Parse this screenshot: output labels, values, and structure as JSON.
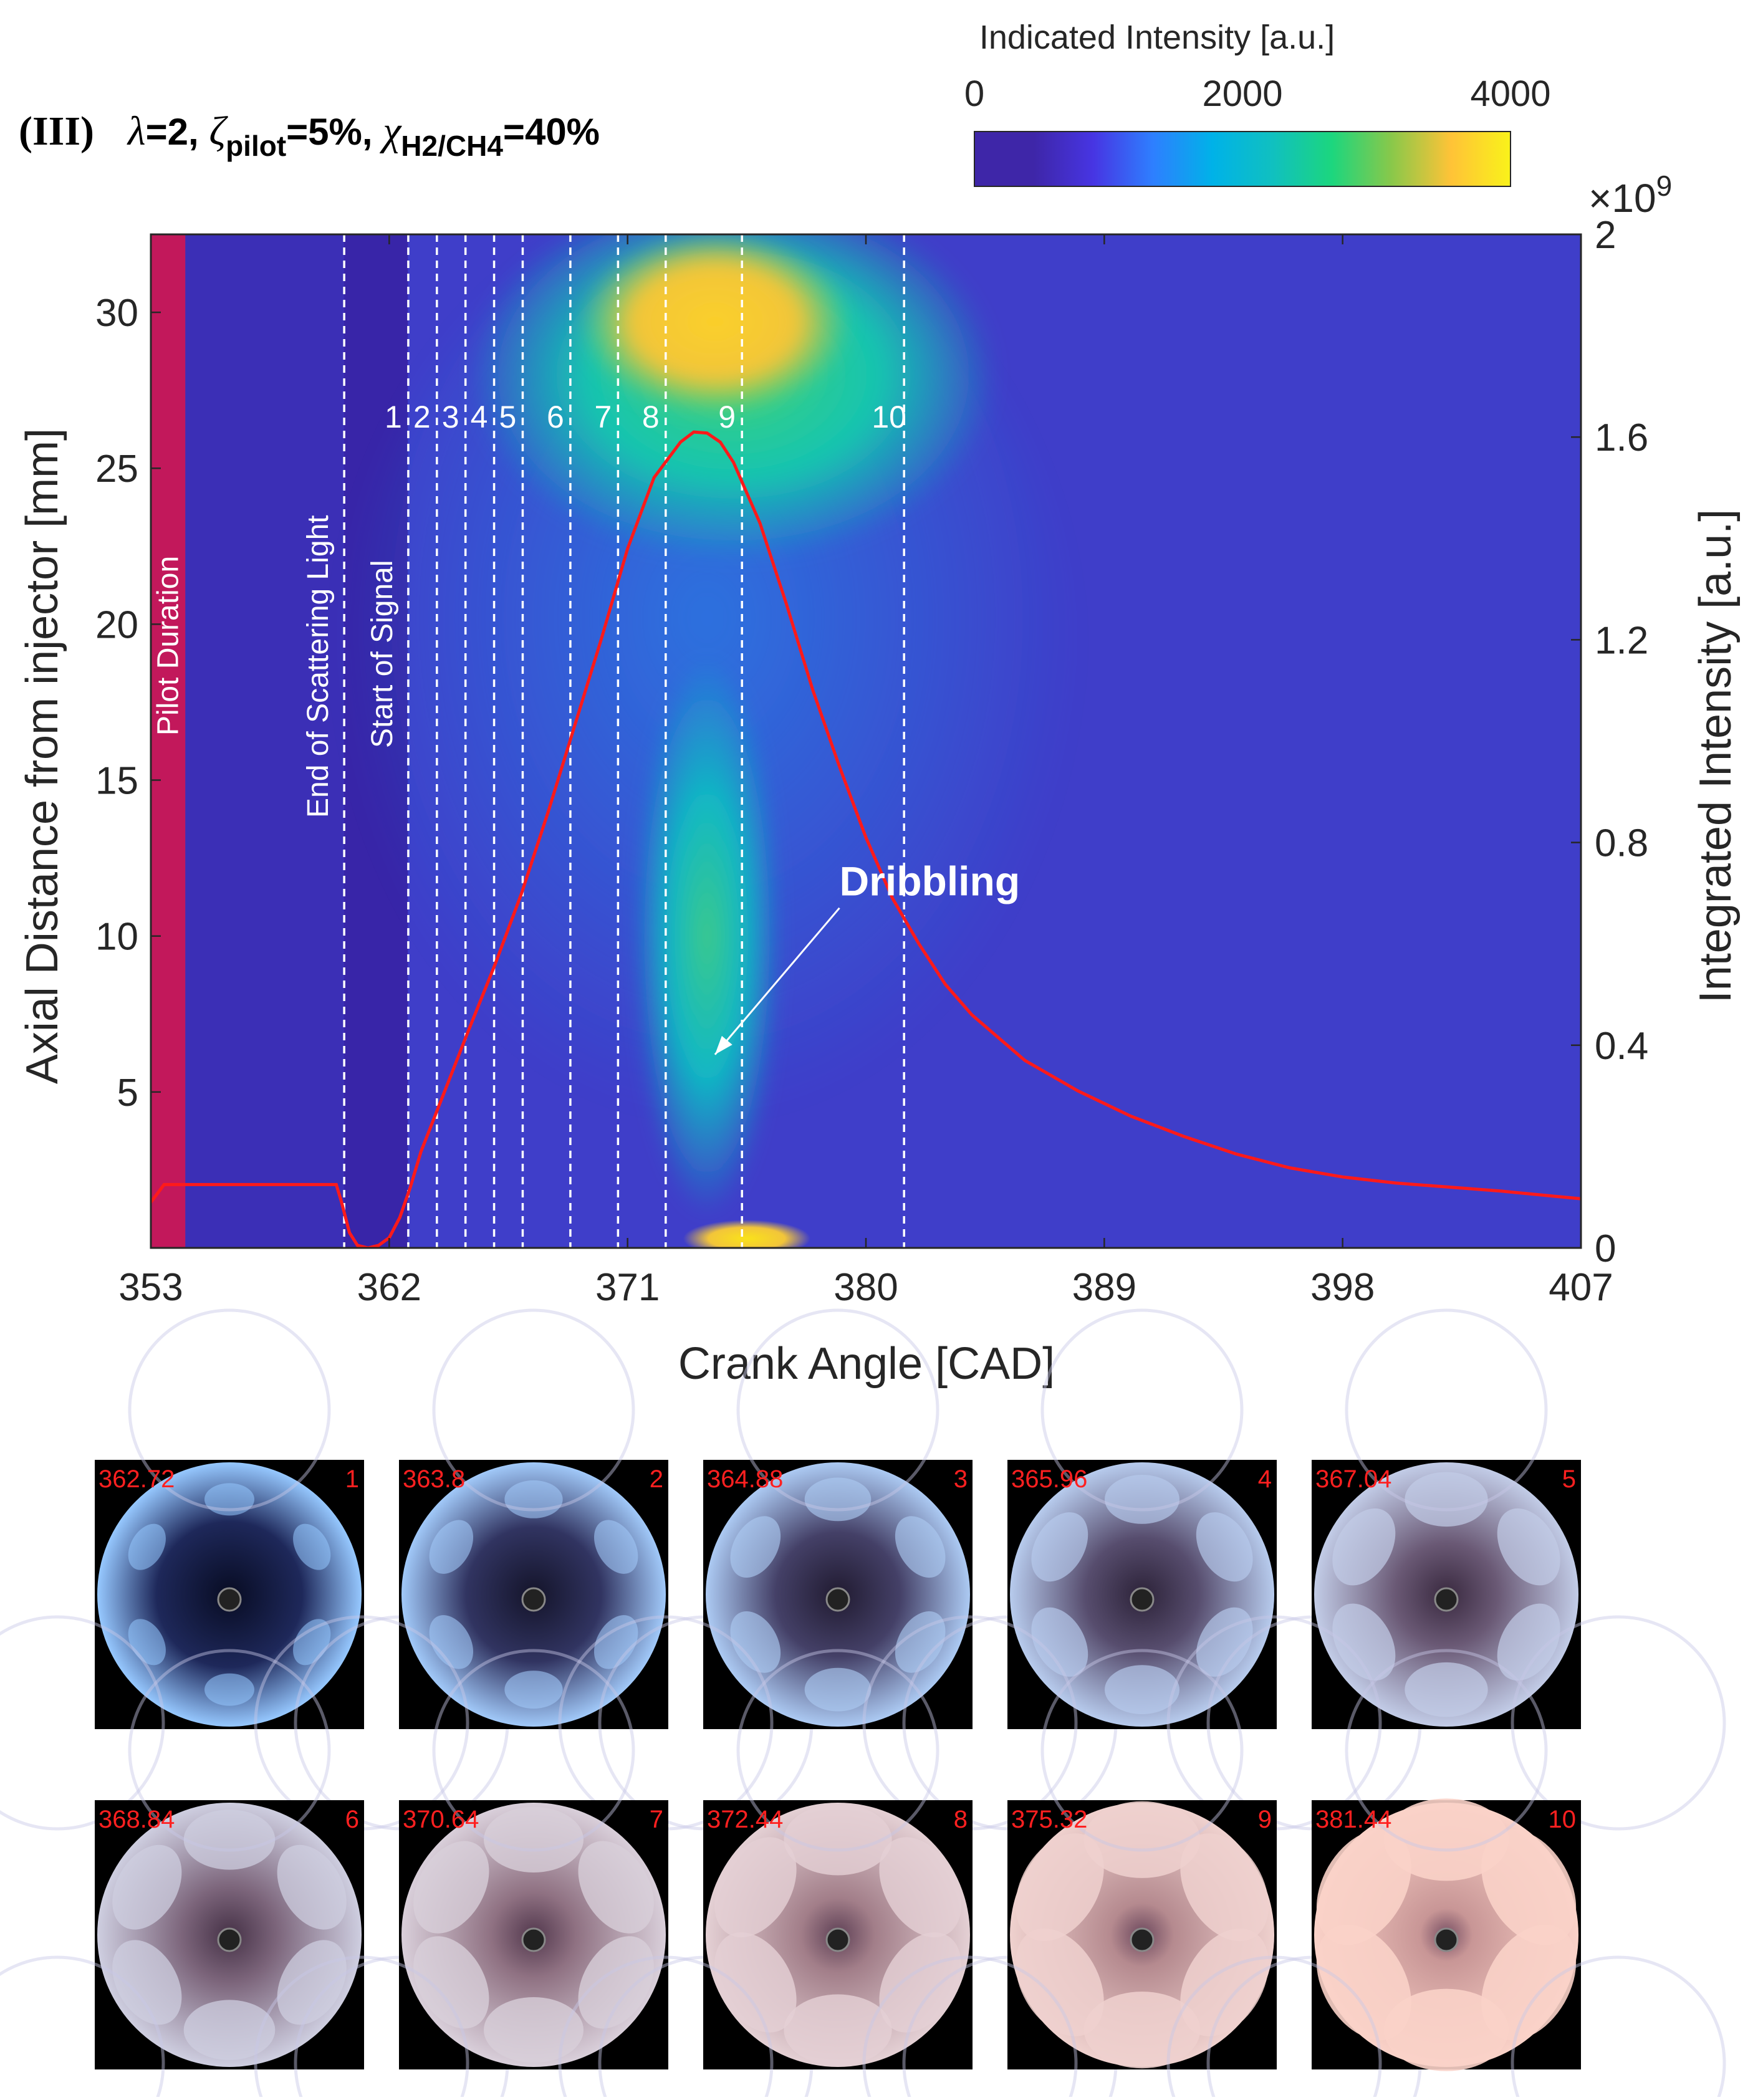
{
  "chart_data": {
    "type": "heatmap",
    "panel_label": "(III)",
    "title": {
      "parts": [
        {
          "text": "λ",
          "style": "symbol"
        },
        {
          "text": "=2, ",
          "style": "normal"
        },
        {
          "text": "ζ",
          "style": "symbol"
        },
        {
          "text": "pilot",
          "style": "sub"
        },
        {
          "text": "=5%, ",
          "style": "normal"
        },
        {
          "text": "χ",
          "style": "symbol"
        },
        {
          "text": "H2/CH4",
          "style": "sub"
        },
        {
          "text": "=40%",
          "style": "normal"
        }
      ]
    },
    "xlabel": "Crank Angle [CAD]",
    "ylabel": "Axial Distance from injector [mm]",
    "y2label": "Integrated Intensity [a.u.]",
    "y2_exponent_label": "×10",
    "y2_exponent": "9",
    "xlim": [
      353,
      407
    ],
    "ylim": [
      0,
      32.5
    ],
    "y2lim": [
      0,
      2
    ],
    "xticks": [
      353,
      362,
      371,
      380,
      389,
      398,
      407
    ],
    "yticks": [
      5,
      10,
      15,
      20,
      25,
      30
    ],
    "y2ticks": [
      "0",
      "0.4",
      "0.8",
      "1.2",
      "1.6",
      "2"
    ],
    "y2tick_values": [
      0,
      0.4,
      0.8,
      1.2,
      1.6,
      2
    ],
    "colorbar": {
      "label": "Indicated Intensity [a.u.]",
      "ticks": [
        0,
        2000,
        4000
      ],
      "range": [
        0,
        4000
      ],
      "colormap": [
        "#3e26a8",
        "#3e26a8",
        "#4735e3",
        "#2e7fff",
        "#00b2e8",
        "#10c0c0",
        "#1cd67e",
        "#89c84a",
        "#ffc337",
        "#f9f21a"
      ]
    },
    "pilot_band": {
      "label": "Pilot Duration",
      "x_start": 353,
      "x_end": 354.3,
      "color": "#c2185b"
    },
    "vertical_markers": [
      {
        "x": 360.3,
        "label": "End of Scattering Light"
      },
      {
        "x": 362.72,
        "label": "Start of Signal"
      }
    ],
    "frame_markers": [
      {
        "id": "1",
        "x": 362.72
      },
      {
        "id": "2",
        "x": 363.8
      },
      {
        "id": "3",
        "x": 364.88
      },
      {
        "id": "4",
        "x": 365.96
      },
      {
        "id": "5",
        "x": 367.04
      },
      {
        "id": "6",
        "x": 368.84
      },
      {
        "id": "7",
        "x": 370.64
      },
      {
        "id": "8",
        "x": 372.44
      },
      {
        "id": "9",
        "x": 375.32
      },
      {
        "id": "10",
        "x": 381.44
      }
    ],
    "annotation": {
      "text": "Dribbling",
      "arrow_from": [
        379.0,
        10.9
      ],
      "arrow_to": [
        374.3,
        6.2
      ]
    },
    "integrated_intensity_curve": {
      "color": "#ff1a1a",
      "x": [
        353,
        353.5,
        354,
        355,
        357,
        359,
        360,
        360.2,
        360.5,
        360.8,
        361.2,
        361.6,
        362.0,
        362.4,
        362.8,
        363.2,
        363.8,
        364.4,
        365.0,
        366.0,
        367.0,
        368.0,
        369.0,
        370.0,
        371.0,
        372.0,
        373.0,
        373.5,
        374.0,
        374.5,
        375.0,
        376.0,
        377.0,
        378.0,
        379.0,
        380.0,
        381.0,
        382.0,
        383.0,
        384.0,
        386.0,
        388.0,
        390.0,
        392.0,
        394.0,
        396.0,
        398.0,
        400.0,
        402.0,
        404.0,
        406.0,
        407.0
      ],
      "y": [
        0.09,
        0.125,
        0.125,
        0.125,
        0.125,
        0.125,
        0.125,
        0.09,
        0.03,
        0.005,
        0.0,
        0.005,
        0.02,
        0.06,
        0.12,
        0.19,
        0.27,
        0.35,
        0.43,
        0.56,
        0.7,
        0.86,
        1.03,
        1.2,
        1.38,
        1.52,
        1.59,
        1.61,
        1.608,
        1.59,
        1.55,
        1.43,
        1.27,
        1.1,
        0.95,
        0.81,
        0.69,
        0.6,
        0.52,
        0.46,
        0.37,
        0.31,
        0.26,
        0.22,
        0.185,
        0.158,
        0.14,
        0.128,
        0.12,
        0.112,
        0.102,
        0.097
      ]
    },
    "heatmap_regions": [
      {
        "kind": "background",
        "level": 400
      },
      {
        "kind": "pilot",
        "x": [
          354.3,
          360.3
        ],
        "level": 300
      },
      {
        "kind": "gap",
        "x": [
          360.3,
          362.7
        ],
        "level": 220
      },
      {
        "kind": "head_glow",
        "cx": 375.0,
        "cy": 28.0,
        "rx": 10.0,
        "ry": 6.0,
        "level": 2000
      },
      {
        "kind": "head_core",
        "cx": 374.3,
        "cy": 29.4,
        "rx": 5.2,
        "ry": 3.0,
        "level": 3300
      },
      {
        "kind": "stem",
        "cx": 374.0,
        "cy": 10.0,
        "rx": 2.8,
        "ry": 9.0,
        "level": 2000
      },
      {
        "kind": "base_tip",
        "cx": 375.5,
        "cy": 0.3,
        "rx": 2.4,
        "ry": 0.6,
        "level": 3600
      }
    ]
  },
  "frames": [
    {
      "id": "1",
      "cad": "362.72"
    },
    {
      "id": "2",
      "cad": "363.8"
    },
    {
      "id": "3",
      "cad": "364.88"
    },
    {
      "id": "4",
      "cad": "365.96"
    },
    {
      "id": "5",
      "cad": "367.04"
    },
    {
      "id": "6",
      "cad": "368.84"
    },
    {
      "id": "7",
      "cad": "370.64"
    },
    {
      "id": "8",
      "cad": "372.44"
    },
    {
      "id": "9",
      "cad": "375.32"
    },
    {
      "id": "10",
      "cad": "381.44"
    }
  ]
}
